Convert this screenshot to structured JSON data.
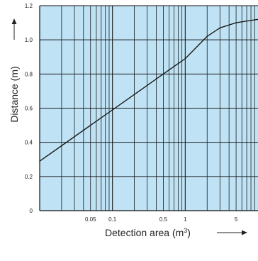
{
  "chart_data": {
    "type": "line",
    "title": "",
    "xlabel": "Detection area (m",
    "xlabel_sup": "3",
    "xlabel_close": ")",
    "ylabel": "Distance (m)",
    "x_scale": "log",
    "xlim": [
      0.01,
      10
    ],
    "ylim": [
      0,
      1.2
    ],
    "grid": true,
    "background_color": "#bfe3f5",
    "line_color": "#1a1a1a",
    "grid_color": "#1a1a1a",
    "x_ticks": [
      {
        "value": 0.05,
        "label": "0.05"
      },
      {
        "value": 0.1,
        "label": "0.1"
      },
      {
        "value": 0.5,
        "label": "0.5"
      },
      {
        "value": 1,
        "label": "1"
      },
      {
        "value": 5,
        "label": "5"
      }
    ],
    "y_ticks": [
      {
        "value": 0,
        "label": "0"
      },
      {
        "value": 0.2,
        "label": "0.2"
      },
      {
        "value": 0.4,
        "label": "0.4"
      },
      {
        "value": 0.6,
        "label": "0.6"
      },
      {
        "value": 0.8,
        "label": "0.8"
      },
      {
        "value": 1.0,
        "label": "1.0"
      },
      {
        "value": 1.2,
        "label": "1.2"
      }
    ],
    "series": [
      {
        "x": [
          0.01,
          0.02,
          0.05,
          0.1,
          0.2,
          0.5,
          1,
          2,
          3,
          5,
          7,
          10
        ],
        "y": [
          0.29,
          0.38,
          0.5,
          0.59,
          0.68,
          0.8,
          0.89,
          1.02,
          1.07,
          1.1,
          1.11,
          1.12
        ]
      }
    ]
  }
}
